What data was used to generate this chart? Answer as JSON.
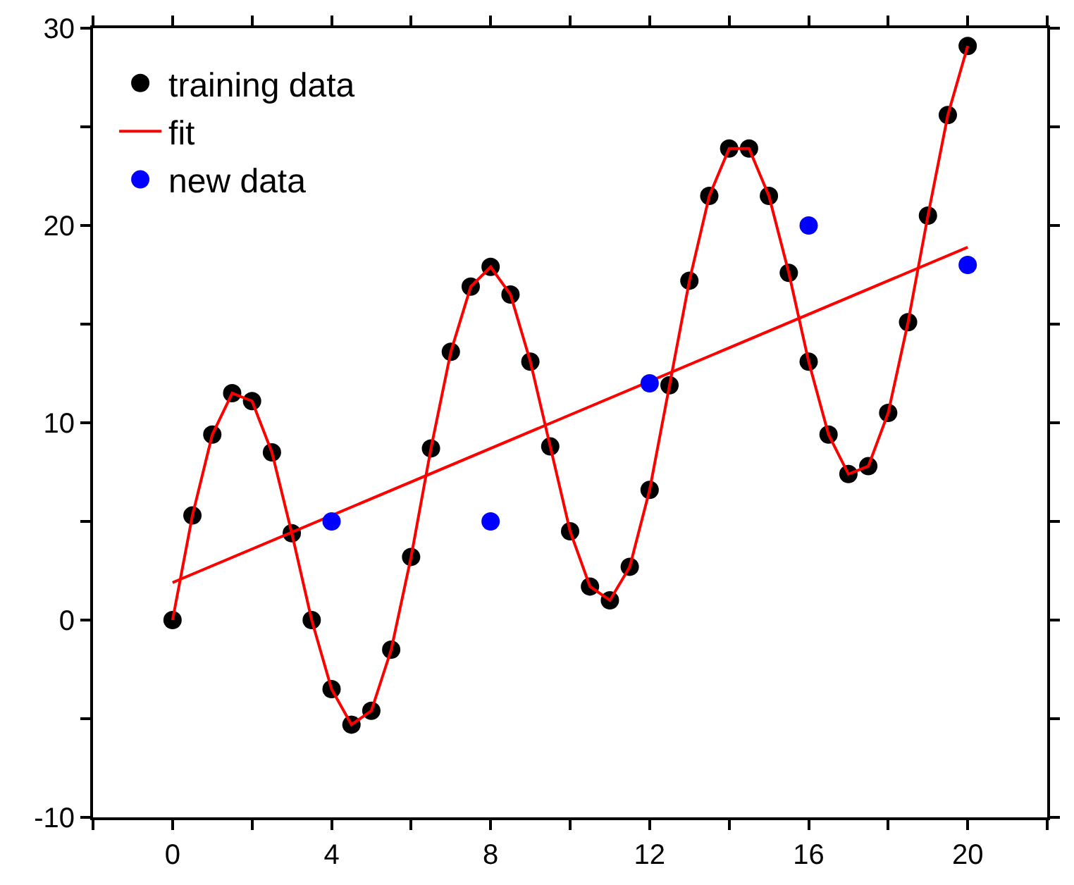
{
  "chart_data": {
    "type": "scatter",
    "xlim": [
      -2,
      22
    ],
    "xticks": [
      {
        "value": -2,
        "label": null
      },
      0,
      {
        "value": 2,
        "label": null
      },
      4,
      {
        "value": 6,
        "label": null
      },
      8,
      {
        "value": 10,
        "label": null
      },
      12,
      {
        "value": 14,
        "label": null
      },
      16,
      {
        "value": 18,
        "label": null
      },
      20,
      {
        "value": 22,
        "label": null
      }
    ],
    "ylim": [
      -10,
      30
    ],
    "yticks": [
      -10,
      {
        "value": -5,
        "label": null
      },
      0,
      {
        "value": 5,
        "label": null
      },
      10,
      {
        "value": 15,
        "label": null
      },
      20,
      {
        "value": 25,
        "label": null
      },
      30
    ],
    "legend": "top left",
    "series": [
      {
        "name": "training data",
        "marker": "circle",
        "color": "#000000",
        "x": [
          0,
          0.5,
          1,
          1.5,
          2,
          2.5,
          3,
          3.5,
          4,
          4.5,
          5,
          5.5,
          6,
          6.5,
          7,
          7.5,
          8,
          8.5,
          9,
          9.5,
          10,
          10.5,
          11,
          11.5,
          12,
          12.5,
          13,
          13.5,
          14,
          14.5,
          15,
          15.5,
          16,
          16.5,
          17,
          17.5,
          18,
          18.5,
          19,
          19.5,
          20
        ],
        "values": [
          0,
          5.3,
          9.4,
          11.5,
          11.1,
          8.5,
          4.4,
          0,
          -3.5,
          -5.3,
          -4.6,
          -1.5,
          3.2,
          8.7,
          13.6,
          16.9,
          17.9,
          16.5,
          13.1,
          8.8,
          4.5,
          1.7,
          1.0,
          2.7,
          6.6,
          11.9,
          17.2,
          21.5,
          23.9,
          23.9,
          21.5,
          17.6,
          13.1,
          9.4,
          7.4,
          7.8,
          10.5,
          15.1,
          20.5,
          25.6,
          29.1
        ]
      },
      {
        "name": "fit",
        "type": "line",
        "line_style": "solid",
        "color": "#ff0000",
        "x": [
          0,
          20
        ],
        "values": [
          1.9,
          18.9
        ]
      },
      {
        "name": "new data",
        "marker": "circle",
        "color": "#0000ff",
        "x": [
          4,
          8,
          12,
          16,
          20
        ],
        "values": [
          5,
          5,
          12,
          20,
          18
        ]
      },
      {
        "type": "line",
        "line_style": "solid",
        "color": "#ff0000",
        "x": [
          0,
          0.5,
          1,
          1.5,
          2,
          2.5,
          3,
          3.5,
          4,
          4.5,
          5,
          5.5,
          6,
          6.5,
          7,
          7.5,
          8,
          8.5,
          9,
          9.5,
          10,
          10.5,
          11,
          11.5,
          12,
          12.5,
          13,
          13.5,
          14,
          14.5,
          15,
          15.5,
          16,
          16.5,
          17,
          17.5,
          18,
          18.5,
          19,
          19.5,
          20
        ],
        "values": [
          0,
          5.3,
          9.4,
          11.5,
          11.1,
          8.5,
          4.4,
          0,
          -3.5,
          -5.3,
          -4.6,
          -1.5,
          3.2,
          8.7,
          13.6,
          16.9,
          17.9,
          16.5,
          13.1,
          8.8,
          4.5,
          1.7,
          1.0,
          2.7,
          6.6,
          11.9,
          17.2,
          21.5,
          23.9,
          23.9,
          21.5,
          17.6,
          13.1,
          9.4,
          7.4,
          7.8,
          10.5,
          15.1,
          20.5,
          25.6,
          29.1
        ]
      }
    ]
  }
}
